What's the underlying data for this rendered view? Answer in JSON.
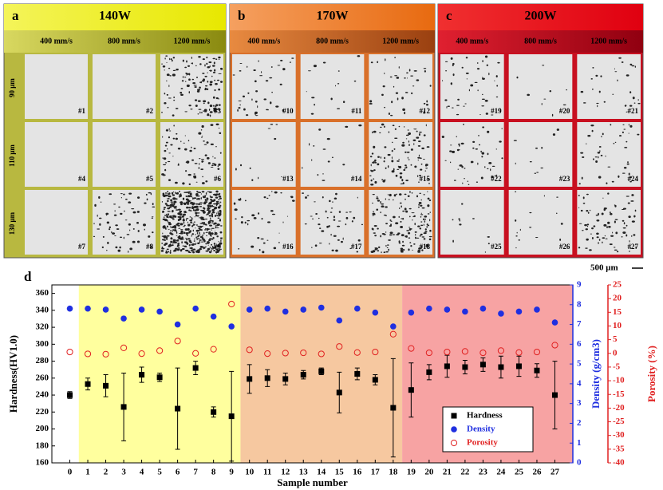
{
  "panels": [
    {
      "letter": "a",
      "power": "140W",
      "speeds": [
        "400 mm/s",
        "800 mm/s",
        "1200 mm/s"
      ],
      "samples": [
        "#1",
        "#2",
        "#3",
        "#4",
        "#5",
        "#6",
        "#7",
        "#8",
        "#9"
      ]
    },
    {
      "letter": "b",
      "power": "170W",
      "speeds": [
        "400 mm/s",
        "800 mm/s",
        "1200 mm/s"
      ],
      "samples": [
        "#10",
        "#11",
        "#12",
        "#13",
        "#14",
        "#15",
        "#16",
        "#17",
        "#18"
      ]
    },
    {
      "letter": "c",
      "power": "200W",
      "speeds": [
        "400 mm/s",
        "800 mm/s",
        "1200 mm/s"
      ],
      "samples": [
        "#19",
        "#20",
        "#21",
        "#22",
        "#23",
        "#24",
        "#25",
        "#26",
        "#27"
      ]
    }
  ],
  "rows": [
    "90 μm",
    "110 μm",
    "130 μm"
  ],
  "scale_bar": "500 μm",
  "chart_data": {
    "type": "scatter",
    "panel_label": "d",
    "xlabel": "Sample number",
    "ylabel": "Hardness(HV1.0)",
    "y2label": "Density (g/cm3)",
    "y3label": "Porosity (%)",
    "x": [
      0,
      1,
      2,
      3,
      4,
      5,
      6,
      7,
      8,
      9,
      10,
      11,
      12,
      13,
      14,
      15,
      16,
      17,
      18,
      19,
      20,
      21,
      22,
      23,
      24,
      25,
      26,
      27
    ],
    "xticks": [
      0,
      1,
      2,
      3,
      4,
      5,
      6,
      7,
      8,
      9,
      10,
      11,
      12,
      13,
      14,
      15,
      16,
      17,
      18,
      19,
      20,
      21,
      22,
      23,
      24,
      25,
      26,
      27
    ],
    "xlim": [
      -1,
      28
    ],
    "ylim": [
      160,
      370
    ],
    "yticks": [
      160,
      180,
      200,
      220,
      240,
      260,
      280,
      300,
      320,
      340,
      360
    ],
    "y2lim": [
      0,
      9
    ],
    "y2ticks": [
      0,
      1,
      2,
      3,
      4,
      5,
      6,
      7,
      8,
      9
    ],
    "y3lim": [
      -40,
      25
    ],
    "y3ticks": [
      -40,
      -35,
      -30,
      -25,
      -20,
      -15,
      -10,
      -5,
      0,
      5,
      10,
      15,
      20,
      25
    ],
    "bands": [
      {
        "color": "#ffff9e",
        "x": [
          1,
          9
        ]
      },
      {
        "color": "#f6c8a0",
        "x": [
          10,
          18
        ]
      },
      {
        "color": "#f7a3a3",
        "x": [
          19,
          27
        ]
      }
    ],
    "legend": "lower right",
    "series": [
      {
        "name": "Hardness",
        "color": "#000000",
        "marker": "square",
        "values": [
          240,
          253,
          251,
          226,
          264,
          261,
          224,
          272,
          220,
          215,
          259,
          260,
          259,
          264,
          268,
          243,
          265,
          258,
          225,
          246,
          267,
          274,
          273,
          276,
          273,
          274,
          269,
          240
        ],
        "errors": [
          4,
          7,
          13,
          40,
          9,
          5,
          48,
          8,
          6,
          53,
          17,
          10,
          7,
          5,
          4,
          24,
          7,
          6,
          58,
          32,
          9,
          13,
          8,
          8,
          13,
          12,
          8,
          40
        ]
      },
      {
        "name": "Density",
        "color": "#1f2fe0",
        "marker": "circle",
        "axis": "y2",
        "values": [
          7.8,
          7.8,
          7.75,
          7.3,
          7.75,
          7.65,
          7.0,
          7.8,
          7.4,
          6.9,
          7.75,
          7.8,
          7.65,
          7.75,
          7.85,
          7.2,
          7.8,
          7.6,
          6.9,
          7.6,
          7.8,
          7.75,
          7.65,
          7.8,
          7.55,
          7.65,
          7.75,
          7.1
        ]
      },
      {
        "name": "Porosity",
        "color": "#e02020",
        "marker": "open-circle",
        "axis": "y3",
        "values": [
          0.5,
          -0.2,
          -0.3,
          2,
          -0.1,
          1,
          4.5,
          0,
          1.5,
          18,
          1.3,
          -0.1,
          0.1,
          0.2,
          -0.2,
          2.5,
          0.3,
          0.5,
          7,
          1.8,
          0.2,
          0.5,
          0.7,
          0.2,
          1,
          0.3,
          0.5,
          3
        ]
      }
    ]
  }
}
